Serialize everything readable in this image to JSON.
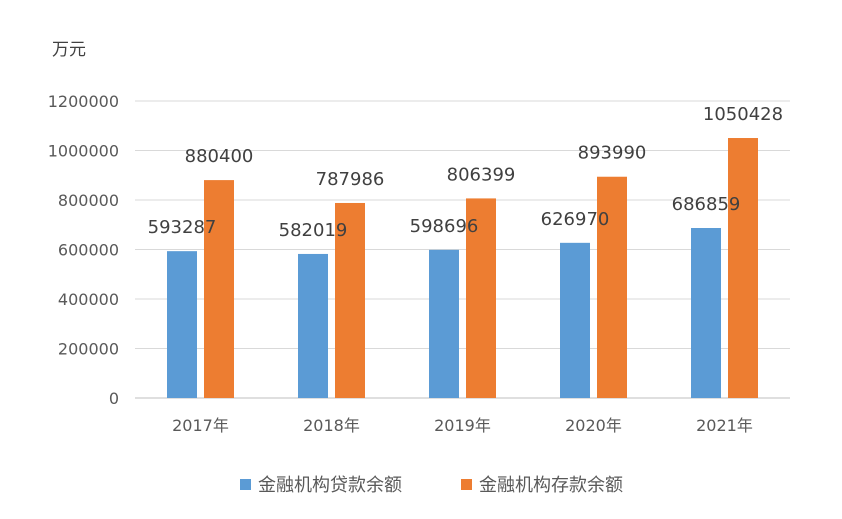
{
  "chart_data": {
    "type": "bar",
    "unit_label": "万元",
    "categories": [
      "2017年",
      "2018年",
      "2019年",
      "2020年",
      "2021年"
    ],
    "series": [
      {
        "name": "金融机构贷款余额",
        "color": "#5B9BD5",
        "values": [
          593287,
          582019,
          598696,
          626970,
          686859
        ]
      },
      {
        "name": "金融机构存款余额",
        "color": "#ED7D31",
        "values": [
          880400,
          787986,
          806399,
          893990,
          1050428
        ]
      }
    ],
    "ylim": [
      0,
      1200000
    ],
    "yticks": [
      "0",
      "200000",
      "400000",
      "600000",
      "800000",
      "1000000",
      "1200000"
    ],
    "ytick_values": [
      0,
      200000,
      400000,
      600000,
      800000,
      1000000,
      1200000
    ],
    "grid": true,
    "legend_position": "bottom"
  }
}
